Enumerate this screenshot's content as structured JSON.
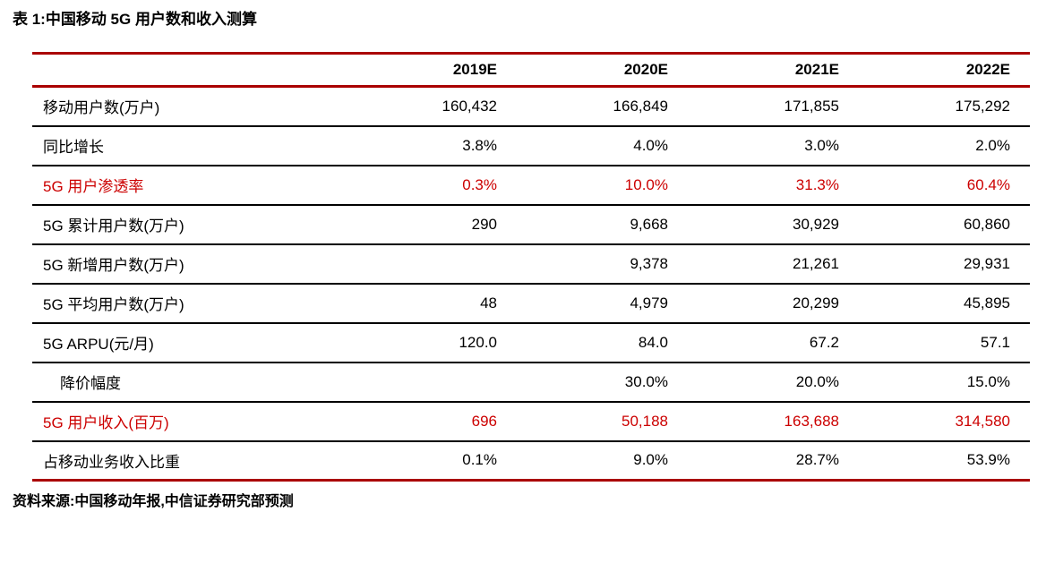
{
  "title": "表 1:中国移动 5G 用户数和收入测算",
  "source": "资料来源:中国移动年报,中信证券研究部预测",
  "colors": {
    "line_red": "#AA0000",
    "text_red": "#CC0000",
    "line_black": "#000000",
    "background": "#FFFFFF"
  },
  "table": {
    "columns": [
      "",
      "2019E",
      "2020E",
      "2021E",
      "2022E"
    ],
    "rows": [
      {
        "label": "移动用户数(万户)",
        "values": [
          "160,432",
          "166,849",
          "171,855",
          "175,292"
        ],
        "red": false,
        "indent": false
      },
      {
        "label": "同比增长",
        "values": [
          "3.8%",
          "4.0%",
          "3.0%",
          "2.0%"
        ],
        "red": false,
        "indent": false
      },
      {
        "label": "5G 用户渗透率",
        "values": [
          "0.3%",
          "10.0%",
          "31.3%",
          "60.4%"
        ],
        "red": true,
        "indent": false
      },
      {
        "label": "5G 累计用户数(万户)",
        "values": [
          "290",
          "9,668",
          "30,929",
          "60,860"
        ],
        "red": false,
        "indent": false
      },
      {
        "label": "5G 新增用户数(万户)",
        "values": [
          "",
          "9,378",
          "21,261",
          "29,931"
        ],
        "red": false,
        "indent": false
      },
      {
        "label": "5G 平均用户数(万户)",
        "values": [
          "48",
          "4,979",
          "20,299",
          "45,895"
        ],
        "red": false,
        "indent": false
      },
      {
        "label": "5G ARPU(元/月)",
        "values": [
          "120.0",
          "84.0",
          "67.2",
          "57.1"
        ],
        "red": false,
        "indent": false
      },
      {
        "label": "降价幅度",
        "values": [
          "",
          "30.0%",
          "20.0%",
          "15.0%"
        ],
        "red": false,
        "indent": true
      },
      {
        "label": "5G 用户收入(百万)",
        "values": [
          "696",
          "50,188",
          "163,688",
          "314,580"
        ],
        "red": true,
        "indent": false
      },
      {
        "label": "占移动业务收入比重",
        "values": [
          "0.1%",
          "9.0%",
          "28.7%",
          "53.9%"
        ],
        "red": false,
        "indent": false
      }
    ]
  },
  "chart_data": {
    "type": "table",
    "title": "表 1:中国移动 5G 用户数和收入测算",
    "categories": [
      "2019E",
      "2020E",
      "2021E",
      "2022E"
    ],
    "series": [
      {
        "name": "移动用户数(万户)",
        "values": [
          160432,
          166849,
          171855,
          175292
        ]
      },
      {
        "name": "同比增长",
        "values": [
          "3.8%",
          "4.0%",
          "3.0%",
          "2.0%"
        ]
      },
      {
        "name": "5G 用户渗透率",
        "values": [
          "0.3%",
          "10.0%",
          "31.3%",
          "60.4%"
        ]
      },
      {
        "name": "5G 累计用户数(万户)",
        "values": [
          290,
          9668,
          30929,
          60860
        ]
      },
      {
        "name": "5G 新增用户数(万户)",
        "values": [
          null,
          9378,
          21261,
          29931
        ]
      },
      {
        "name": "5G 平均用户数(万户)",
        "values": [
          48,
          4979,
          20299,
          45895
        ]
      },
      {
        "name": "5G ARPU(元/月)",
        "values": [
          120.0,
          84.0,
          67.2,
          57.1
        ]
      },
      {
        "name": "降价幅度",
        "values": [
          null,
          "30.0%",
          "20.0%",
          "15.0%"
        ]
      },
      {
        "name": "5G 用户收入(百万)",
        "values": [
          696,
          50188,
          163688,
          314580
        ]
      },
      {
        "name": "占移动业务收入比重",
        "values": [
          "0.1%",
          "9.0%",
          "28.7%",
          "53.9%"
        ]
      }
    ],
    "annotations": "资料来源:中国移动年报,中信证券研究部预测"
  }
}
